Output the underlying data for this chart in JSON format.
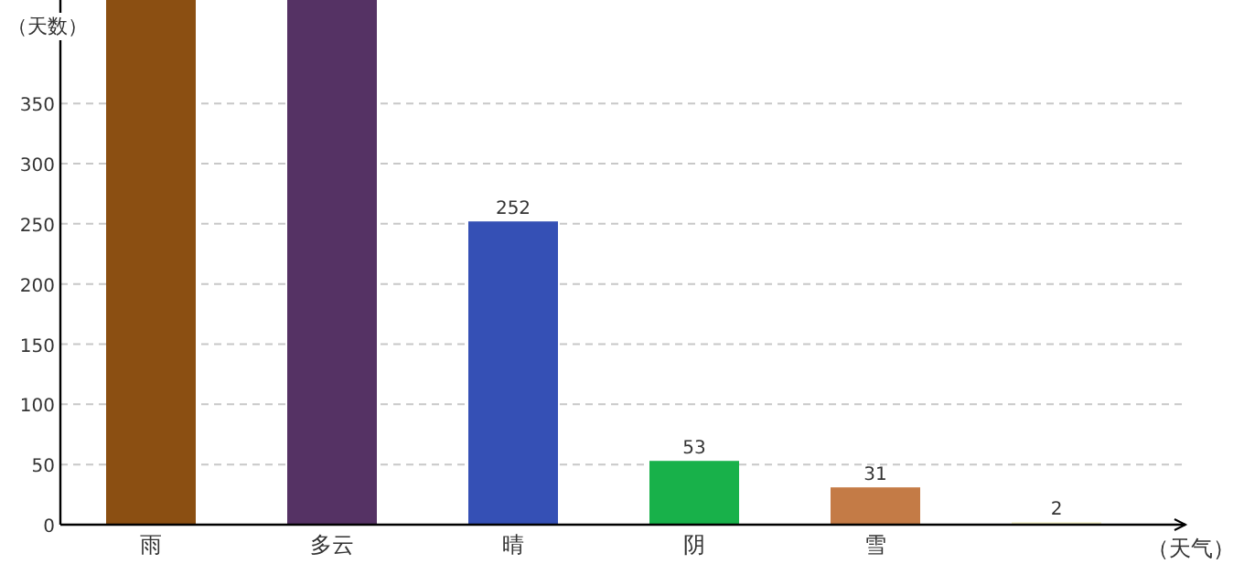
{
  "chart_data": {
    "type": "bar",
    "xlabel": "（天气）",
    "ylabel": "（天数）",
    "categories": [
      "雨",
      "多云",
      "晴",
      "阴",
      "雪",
      null
    ],
    "values": [
      436,
      436,
      252,
      53,
      31,
      2
    ],
    "colors": [
      "#8b4f12",
      "#553264",
      "#3550b5",
      "#18b14a",
      "#c47b46",
      "#f3efc4"
    ],
    "value_labels": [
      null,
      null,
      "252",
      "53",
      "31",
      "2"
    ],
    "ylim": [
      0,
      436
    ],
    "yticks": [
      0,
      50,
      100,
      150,
      200,
      250,
      300,
      350
    ],
    "grid": "y"
  }
}
